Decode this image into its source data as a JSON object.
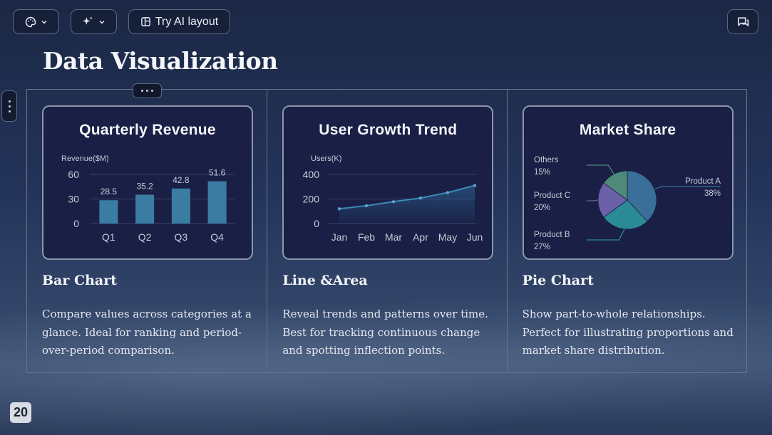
{
  "toolbar": {
    "theme_icon": "palette-icon",
    "ai_icon": "sparkle-icon",
    "try_ai_label": "Try AI layout",
    "comment_icon": "comment-icon"
  },
  "page_title": "Data Visualization",
  "page_number": "20",
  "columns": [
    {
      "card_title": "Quarterly Revenue",
      "heading": "Bar Chart",
      "description": "Compare values across categories at a glance. Ideal for ranking and period-over-period comparison."
    },
    {
      "card_title": "User Growth Trend",
      "heading": "Line &Area",
      "description": "Reveal trends and patterns over time. Best for tracking continuous change and spotting inflection points."
    },
    {
      "card_title": "Market Share",
      "heading": "Pie Chart",
      "description": "Show part-to-whole relationships. Perfect for illustrating proportions and market share distribution."
    }
  ],
  "chart_data": [
    {
      "type": "bar",
      "title": "Quarterly Revenue",
      "ylabel": "Revenue($M)",
      "categories": [
        "Q1",
        "Q2",
        "Q3",
        "Q4"
      ],
      "values": [
        28.5,
        35.2,
        42.8,
        51.6
      ],
      "yticks": [
        "0",
        "30",
        "60"
      ],
      "ylim": [
        0,
        60
      ],
      "color": "#3b7ca3"
    },
    {
      "type": "area",
      "title": "User Growth Trend",
      "ylabel": "Users(K)",
      "categories": [
        "Jan",
        "Feb",
        "Mar",
        "Apr",
        "May",
        "Jun"
      ],
      "values": [
        120,
        145,
        178,
        208,
        252,
        310
      ],
      "yticks": [
        "0",
        "200",
        "400"
      ],
      "ylim": [
        0,
        400
      ],
      "color": "#3e88b3"
    },
    {
      "type": "pie",
      "title": "Market Share",
      "slices": [
        {
          "label": "Product A",
          "pct": "38%",
          "value": 38,
          "color": "#3a6f9a"
        },
        {
          "label": "Product B",
          "pct": "27%",
          "value": 27,
          "color": "#2a8b96"
        },
        {
          "label": "Product C",
          "pct": "20%",
          "value": 20,
          "color": "#6b61a8"
        },
        {
          "label": "Others",
          "pct": "15%",
          "value": 15,
          "color": "#4f8a78"
        }
      ]
    }
  ]
}
